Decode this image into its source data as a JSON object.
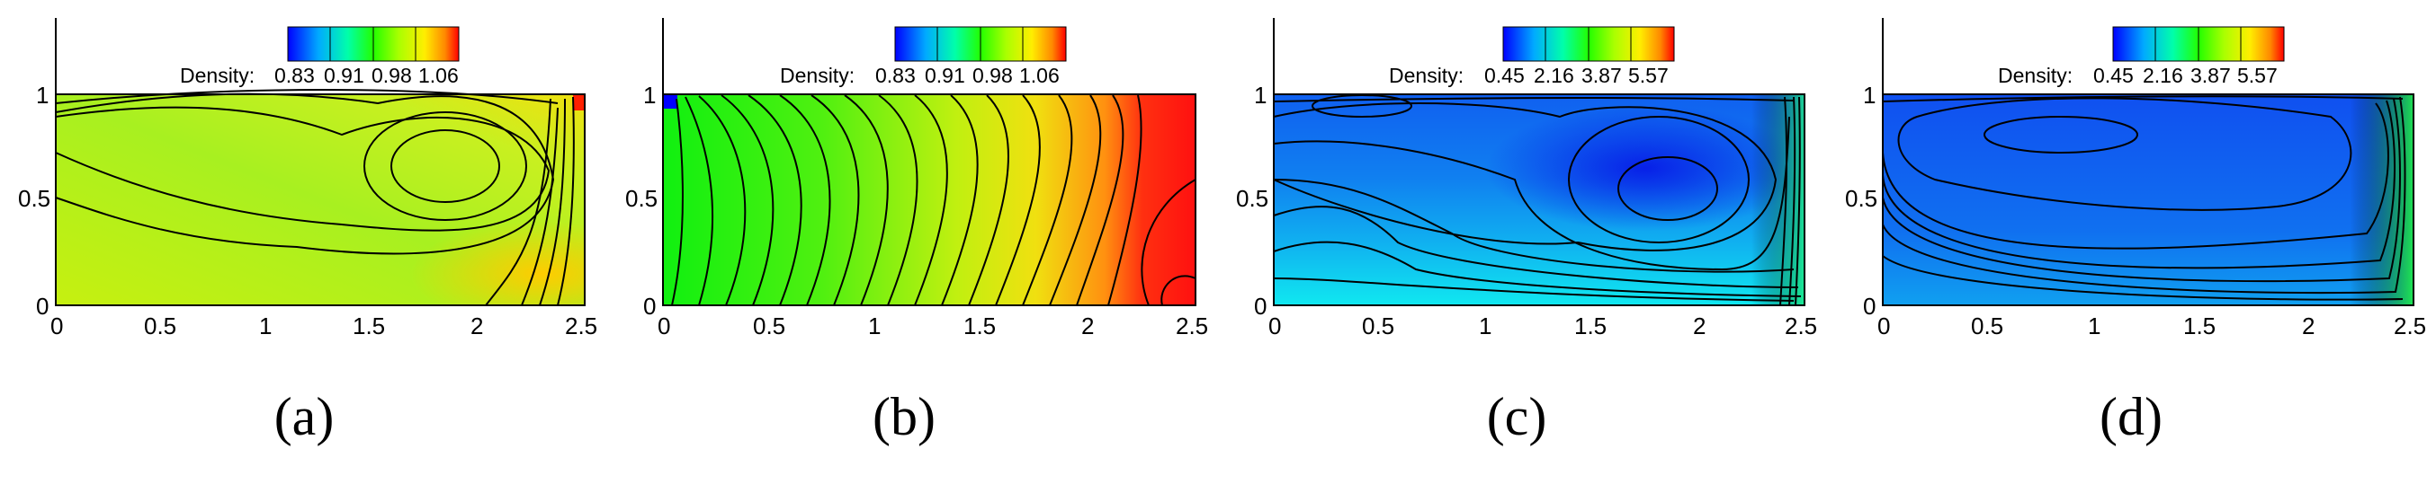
{
  "chart_data": [
    {
      "type": "heatmap",
      "panel_label": "a",
      "colorbar": {
        "label": "Density:",
        "ticks": [
          "0.83",
          "0.91",
          "0.98",
          "1.06"
        ]
      },
      "x_ticks": [
        "0",
        "0.5",
        "1",
        "1.5",
        "2",
        "2.5"
      ],
      "y_ticks": [
        "0",
        "0.5",
        "1"
      ],
      "xlim": [
        0,
        2.5
      ],
      "ylim": [
        0,
        1
      ],
      "fill_color": "#b8ec18"
    },
    {
      "type": "heatmap",
      "panel_label": "b",
      "colorbar": {
        "label": "Density:",
        "ticks": [
          "0.83",
          "0.91",
          "0.98",
          "1.06"
        ]
      },
      "x_ticks": [
        "0",
        "0.5",
        "1",
        "1.5",
        "2",
        "2.5"
      ],
      "y_ticks": [
        "0",
        "0.5",
        "1"
      ],
      "xlim": [
        0,
        2.5
      ],
      "ylim": [
        0,
        1
      ],
      "fill_color": "#1ef01e"
    },
    {
      "type": "heatmap",
      "panel_label": "c",
      "colorbar": {
        "label": "Density:",
        "ticks": [
          "0.45",
          "2.16",
          "3.87",
          "5.57"
        ]
      },
      "x_ticks": [
        "0",
        "0.5",
        "1",
        "1.5",
        "2",
        "2.5"
      ],
      "y_ticks": [
        "0",
        "0.5",
        "1"
      ],
      "xlim": [
        0,
        2.5
      ],
      "ylim": [
        0,
        1
      ],
      "fill_color": "#1e6cf0"
    },
    {
      "type": "heatmap",
      "panel_label": "d",
      "colorbar": {
        "label": "Density:",
        "ticks": [
          "0.45",
          "2.16",
          "3.87",
          "5.57"
        ]
      },
      "x_ticks": [
        "0",
        "0.5",
        "1",
        "1.5",
        "2",
        "2.5"
      ],
      "y_ticks": [
        "0",
        "0.5",
        "1"
      ],
      "xlim": [
        0,
        2.5
      ],
      "ylim": [
        0,
        1
      ],
      "fill_color": "#1e5cf0"
    }
  ],
  "captions": [
    "(a)",
    "(b)",
    "(c)",
    "(d)"
  ]
}
